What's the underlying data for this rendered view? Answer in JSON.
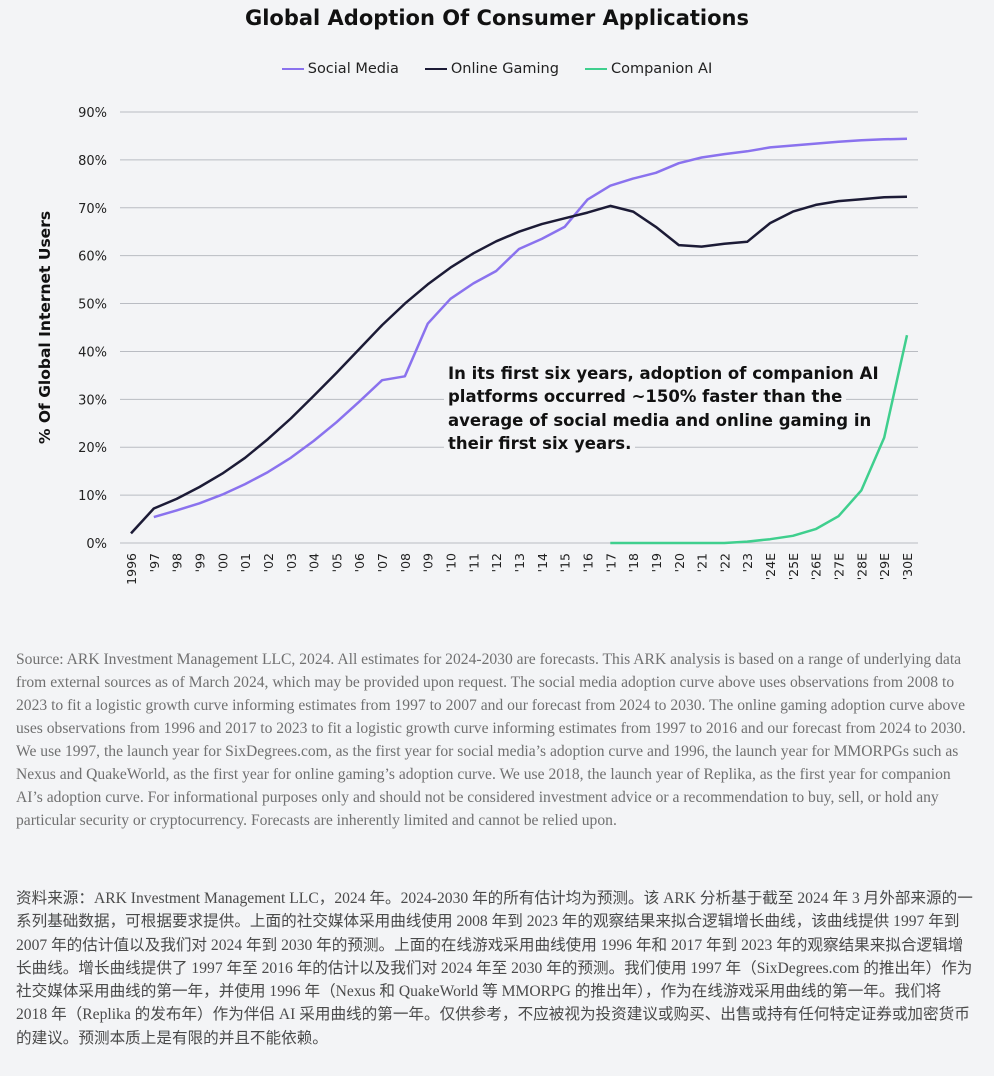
{
  "chart_data": {
    "type": "line",
    "title": "Global Adoption Of Consumer Applications",
    "ylabel": "% Of Global Internet Users",
    "xlabel": "",
    "ylim": [
      0,
      90
    ],
    "yticks": [
      "0%",
      "10%",
      "20%",
      "30%",
      "40%",
      "50%",
      "60%",
      "70%",
      "80%",
      "90%"
    ],
    "grid": true,
    "legend_position": "top",
    "categories": [
      "1996",
      "'97",
      "'98",
      "'99",
      "'00",
      "'01",
      "'02",
      "'03",
      "'04",
      "'05",
      "'06",
      "'07",
      "'08",
      "'09",
      "'10",
      "'11",
      "'12",
      "'13",
      "'14",
      "'15",
      "'16",
      "'17",
      "'18",
      "'19",
      "'20",
      "'21",
      "'22",
      "'23",
      "'24E",
      "'25E",
      "'26E",
      "'27E",
      "'28E",
      "'29E",
      "'30E"
    ],
    "series": [
      {
        "name": "Social Media",
        "color": "#8a72ee",
        "values": [
          null,
          5.4,
          6.8,
          8.3,
          10.1,
          12.3,
          14.8,
          17.8,
          21.3,
          25.2,
          29.5,
          34.0,
          34.8,
          45.8,
          51.0,
          54.2,
          56.8,
          61.4,
          63.5,
          66.0,
          71.7,
          74.6,
          76.1,
          77.3,
          79.3,
          80.5,
          81.2,
          81.8,
          82.6,
          83.0,
          83.4,
          83.8,
          84.1,
          84.3,
          84.4
        ]
      },
      {
        "name": "Online Gaming",
        "color": "#1c1b36",
        "values": [
          2.0,
          7.2,
          9.2,
          11.7,
          14.5,
          17.8,
          21.7,
          26.0,
          30.7,
          35.5,
          40.5,
          45.5,
          50.0,
          54.0,
          57.5,
          60.5,
          63.0,
          65.0,
          66.6,
          67.8,
          69.0,
          70.4,
          69.2,
          66.0,
          62.2,
          61.9,
          62.5,
          62.9,
          66.8,
          69.2,
          70.6,
          71.4,
          71.8,
          72.2,
          72.3
        ]
      },
      {
        "name": "Companion AI",
        "color": "#3fcf8e",
        "values": [
          null,
          null,
          null,
          null,
          null,
          null,
          null,
          null,
          null,
          null,
          null,
          null,
          null,
          null,
          null,
          null,
          null,
          null,
          null,
          null,
          null,
          0,
          0,
          0,
          0,
          0,
          0,
          0.3,
          0.8,
          1.5,
          2.9,
          5.6,
          11.0,
          22.0,
          43.4
        ]
      }
    ],
    "annotation": [
      "In its first six years, adoption of companion AI",
      "platforms occurred ~150% faster than the",
      "average of social media and online gaming in",
      "their first six years."
    ]
  },
  "footnote_en": "Source: ARK Investment Management LLC, 2024. All estimates for 2024-2030 are forecasts. This ARK analysis is based on a range of underlying data from external sources as of March 2024, which may be provided upon request. The social media adoption curve above uses observations from 2008 to 2023 to fit a logistic growth curve informing estimates from 1997 to 2007 and our forecast from 2024 to 2030. The online gaming adoption curve above uses observations from 1996 and 2017 to 2023 to fit a logistic growth curve informing estimates from 1997 to 2016 and our forecast from 2024 to 2030. We use 1997, the launch year for SixDegrees.com, as the first year for social media’s adoption curve and 1996, the launch year for MMORPGs such as Nexus and QuakeWorld, as the first year for online gaming’s adoption curve. We use 2018, the launch year of Replika, as the first year for companion AI’s adoption curve. For informational purposes only and should not be considered investment advice or a recommendation to buy, sell, or hold any particular security or cryptocurrency. Forecasts are inherently limited and cannot be relied upon.",
  "footnote_zh": "资料来源：ARK Investment Management LLC，2024 年。2024-2030 年的所有估计均为预测。该 ARK 分析基于截至 2024 年 3 月外部来源的一系列基础数据，可根据要求提供。上面的社交媒体采用曲线使用 2008 年到 2023 年的观察结果来拟合逻辑增长曲线，该曲线提供 1997 年到 2007 年的估计值以及我们对 2024 年到 2030 年的预测。上面的在线游戏采用曲线使用 1996 年和 2017 年到 2023 年的观察结果来拟合逻辑增长曲线。增长曲线提供了 1997 年至 2016 年的估计以及我们对 2024 年至 2030 年的预测。我们使用 1997 年（SixDegrees.com 的推出年）作为社交媒体采用曲线的第一年，并使用 1996 年（Nexus 和 QuakeWorld 等 MMORPG 的推出年），作为在线游戏采用曲线的第一年。我们将 2018 年（Replika 的发布年）作为伴侣 AI 采用曲线的第一年。仅供参考，不应被视为投资建议或购买、出售或持有任何特定证券或加密货币的建议。预测本质上是有限的并且不能依赖。"
}
